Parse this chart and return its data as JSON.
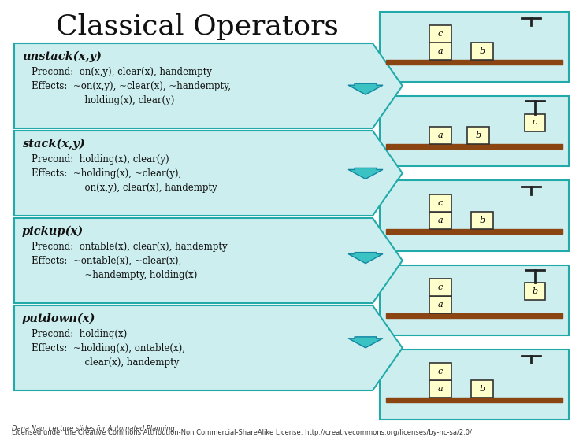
{
  "title": "Classical Operators",
  "title_fontsize": 26,
  "bg_color": "#ffffff",
  "panel_bg": "#cceeee",
  "panel_border": "#22aaaa",
  "arrow_color": "#22bbbb",
  "box_fill": "#ffffcc",
  "box_border": "#333333",
  "table_fill": "#8B4513",
  "operators": [
    {
      "title": "unstack(x,y)",
      "lines": [
        "Precond:  on(x,y), clear(x), handempty",
        "Effects:  ~on(x,y), ~clear(x), ~handempty,",
        "                  holding(x), clear(y)"
      ]
    },
    {
      "title": "stack(x,y)",
      "lines": [
        "Precond:  holding(x), clear(y)",
        "Effects:  ~holding(x), ~clear(y),",
        "                  on(x,y), clear(x), handempty"
      ]
    },
    {
      "title": "pickup(x)",
      "lines": [
        "Precond:  ontable(x), clear(x), handempty",
        "Effects:  ~ontable(x), ~clear(x),",
        "                  ~handempty, holding(x)"
      ]
    },
    {
      "title": "putdown(x)",
      "lines": [
        "Precond:  holding(x)",
        "Effects:  ~holding(x), ontable(x),",
        "                  clear(x), handempty"
      ]
    }
  ],
  "footer_line1": "Dana Nau: Lecture slides for Automated Planning",
  "footer_line2": "Licensed under the Creative Commons Attribution-Non Commercial-ShareAlike License: http://creativecommons.org/licenses/by-nc-sa/2.0/",
  "footer_fontsize": 6.0
}
